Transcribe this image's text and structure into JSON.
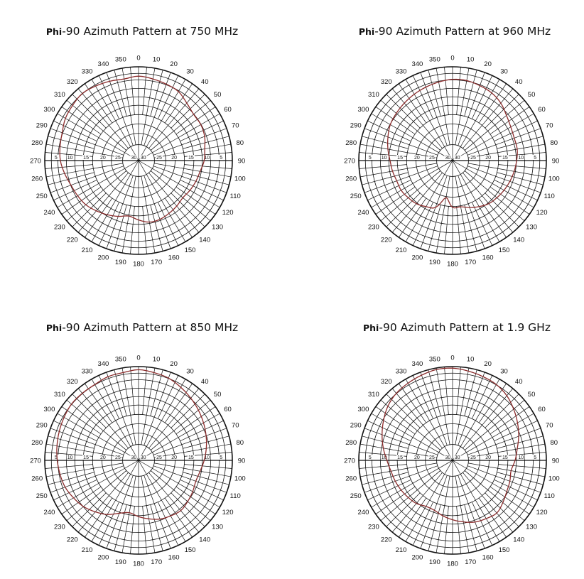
{
  "chart_data": [
    {
      "type": "polar",
      "title_prefix": "Phi",
      "title_main": "-90 Azimuth Pattern at 750 MHz",
      "angle_labels": [
        "0",
        "10",
        "20",
        "30",
        "40",
        "50",
        "60",
        "70",
        "80",
        "90",
        "100",
        "110",
        "120",
        "130",
        "140",
        "150",
        "160",
        "170",
        "180",
        "190",
        "200",
        "210",
        "220",
        "230",
        "240",
        "250",
        "260",
        "270",
        "280",
        "290",
        "300",
        "310",
        "320",
        "330",
        "340",
        "350"
      ],
      "radial_labels": [
        "5",
        "10",
        "15",
        "20",
        "25",
        "30"
      ],
      "pattern_db": [
        -3,
        -3.5,
        -4,
        -4.5,
        -6,
        -7,
        -7,
        -7.5,
        -8.5,
        -9,
        -10,
        -10.5,
        -11,
        -11.5,
        -11,
        -10.5,
        -10,
        -10,
        -11,
        -12,
        -11,
        -10,
        -9,
        -8,
        -7.5,
        -7,
        -6,
        -5,
        -4.5,
        -4,
        -3,
        -2.5,
        -2,
        -2.5,
        -3,
        -3.5
      ],
      "color": "#8b2b2b"
    },
    {
      "type": "polar",
      "title_prefix": "Phi",
      "title_main": "-90 Azimuth Pattern at 960 MHz",
      "angle_labels": [
        "0",
        "10",
        "20",
        "30",
        "40",
        "50",
        "60",
        "70",
        "80",
        "90",
        "100",
        "110",
        "120",
        "130",
        "140",
        "150",
        "160",
        "170",
        "180",
        "190",
        "200",
        "210",
        "220",
        "230",
        "240",
        "250",
        "260",
        "270",
        "280",
        "290",
        "300",
        "310",
        "320",
        "330",
        "340",
        "350"
      ],
      "radial_labels": [
        "5",
        "10",
        "15",
        "20",
        "25",
        "30"
      ],
      "pattern_db": [
        -4,
        -4,
        -4.5,
        -5,
        -6,
        -7.5,
        -8.5,
        -9,
        -9,
        -9.5,
        -10,
        -10.5,
        -11,
        -11.5,
        -12,
        -13,
        -14,
        -15,
        -15,
        -18,
        -14,
        -13,
        -12,
        -11.5,
        -11,
        -11,
        -10.5,
        -10,
        -9,
        -8,
        -7,
        -6.5,
        -6,
        -5.5,
        -5,
        -4.5
      ],
      "color": "#8b2b2b"
    },
    {
      "type": "polar",
      "title_prefix": "Phi",
      "title_main": "-90 Azimuth Pattern at 850 MHz",
      "angle_labels": [
        "0",
        "10",
        "20",
        "30",
        "40",
        "50",
        "60",
        "70",
        "80",
        "90",
        "100",
        "110",
        "120",
        "130",
        "140",
        "150",
        "160",
        "170",
        "180",
        "190",
        "200",
        "210",
        "220",
        "230",
        "240",
        "250",
        "260",
        "270",
        "280",
        "290",
        "300",
        "310",
        "320",
        "330",
        "340",
        "350"
      ],
      "radial_labels": [
        "5",
        "10",
        "15",
        "20",
        "25",
        "30"
      ],
      "pattern_db": [
        -1,
        -1.5,
        -2,
        -3,
        -4,
        -5,
        -6,
        -7,
        -8,
        -9,
        -10,
        -10.5,
        -10,
        -9.5,
        -9,
        -9.5,
        -10,
        -11,
        -12,
        -13,
        -12,
        -10,
        -8.5,
        -7,
        -6,
        -5,
        -4.5,
        -4,
        -3.5,
        -3,
        -2.5,
        -2,
        -2,
        -2,
        -1.5,
        -1.5
      ],
      "color": "#8b2b2b"
    },
    {
      "type": "polar",
      "title_prefix": "Phi",
      "title_main": "-90 Azimuth Pattern at 1.9 GHz",
      "angle_labels": [
        "0",
        "10",
        "20",
        "30",
        "40",
        "50",
        "60",
        "70",
        "80",
        "90",
        "100",
        "110",
        "120",
        "130",
        "140",
        "150",
        "160",
        "170",
        "180",
        "190",
        "200",
        "210",
        "220",
        "230",
        "240",
        "250",
        "260",
        "270",
        "280",
        "290",
        "300",
        "310",
        "320",
        "330",
        "340",
        "350"
      ],
      "radial_labels": [
        "5",
        "10",
        "15",
        "20",
        "25",
        "30"
      ],
      "pattern_db": [
        -0.5,
        -1,
        -1.5,
        -2,
        -3,
        -4.5,
        -6,
        -7.5,
        -9,
        -10,
        -11,
        -10.5,
        -10,
        -9,
        -8,
        -8.5,
        -9,
        -10,
        -11,
        -12,
        -13,
        -13,
        -12,
        -11.5,
        -11,
        -10.5,
        -10,
        -9,
        -7.5,
        -6,
        -4.5,
        -3,
        -2,
        -1.5,
        -1,
        -0.5
      ],
      "color": "#8b2b2b"
    }
  ]
}
